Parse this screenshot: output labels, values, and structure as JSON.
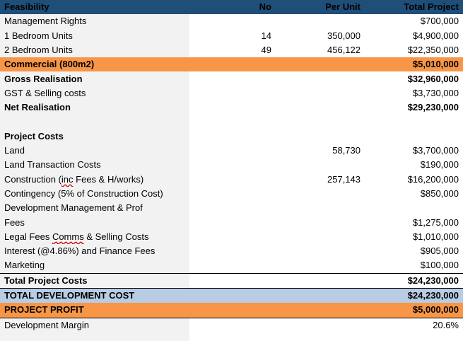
{
  "header": {
    "label": "Feasibility",
    "col_no": "No",
    "col_per_unit": "Per Unit",
    "col_total": "Total Project"
  },
  "rows": [
    {
      "label": "Management Rights",
      "no": "",
      "per_unit": "",
      "total": "$700,000"
    },
    {
      "label": "1 Bedroom Units",
      "no": "14",
      "per_unit": "350,000",
      "total": "$4,900,000"
    },
    {
      "label": "2 Bedroom Units",
      "no": "49",
      "per_unit": "456,122",
      "total": "$22,350,000"
    },
    {
      "label": "Commercial (800m2)",
      "no": "",
      "per_unit": "",
      "total": "$5,010,000"
    },
    {
      "label": "Gross Realisation",
      "no": "",
      "per_unit": "",
      "total": "$32,960,000"
    },
    {
      "label": "GST & Selling costs",
      "no": "",
      "per_unit": "",
      "total": "$3,730,000"
    },
    {
      "label": "Net Realisation",
      "no": "",
      "per_unit": "",
      "total": "$29,230,000"
    },
    {
      "label": "",
      "no": "",
      "per_unit": "",
      "total": ""
    },
    {
      "label": "Project Costs",
      "no": "",
      "per_unit": "",
      "total": ""
    },
    {
      "label": "Land",
      "no": "",
      "per_unit": "58,730",
      "total": "$3,700,000"
    },
    {
      "label": "Land Transaction Costs",
      "no": "",
      "per_unit": "",
      "total": "$190,000"
    },
    {
      "label_pre": "Construction (",
      "label_squig": "inc",
      "label_post": " Fees & H/works)",
      "no": "",
      "per_unit": "257,143",
      "total": "$16,200,000"
    },
    {
      "label": "Contingency (5% of Construction Cost)",
      "no": "",
      "per_unit": "",
      "total": "$850,000"
    },
    {
      "label": "Development Management & Prof",
      "no": "",
      "per_unit": "",
      "total": ""
    },
    {
      "label": "Fees",
      "no": "",
      "per_unit": "",
      "total": "$1,275,000"
    },
    {
      "label_pre": "Legal Fees ",
      "label_squig": "Comms",
      "label_post": " & Selling Costs",
      "no": "",
      "per_unit": "",
      "total": "$1,010,000"
    },
    {
      "label": "Interest (@4.86%) and Finance Fees",
      "no": "",
      "per_unit": "",
      "total": "$905,000"
    },
    {
      "label": "Marketing",
      "no": "",
      "per_unit": "",
      "total": "$100,000"
    },
    {
      "label": "Total Project Costs",
      "no": "",
      "per_unit": "",
      "total": "$24,230,000"
    },
    {
      "label": "TOTAL DEVELOPMENT COST",
      "no": "",
      "per_unit": "",
      "total": "$24,230,000"
    },
    {
      "label": "PROJECT PROFIT",
      "no": "",
      "per_unit": "",
      "total": "$5,000,000"
    },
    {
      "label": "Development Margin",
      "no": "",
      "per_unit": "",
      "total": "20.6%"
    }
  ]
}
